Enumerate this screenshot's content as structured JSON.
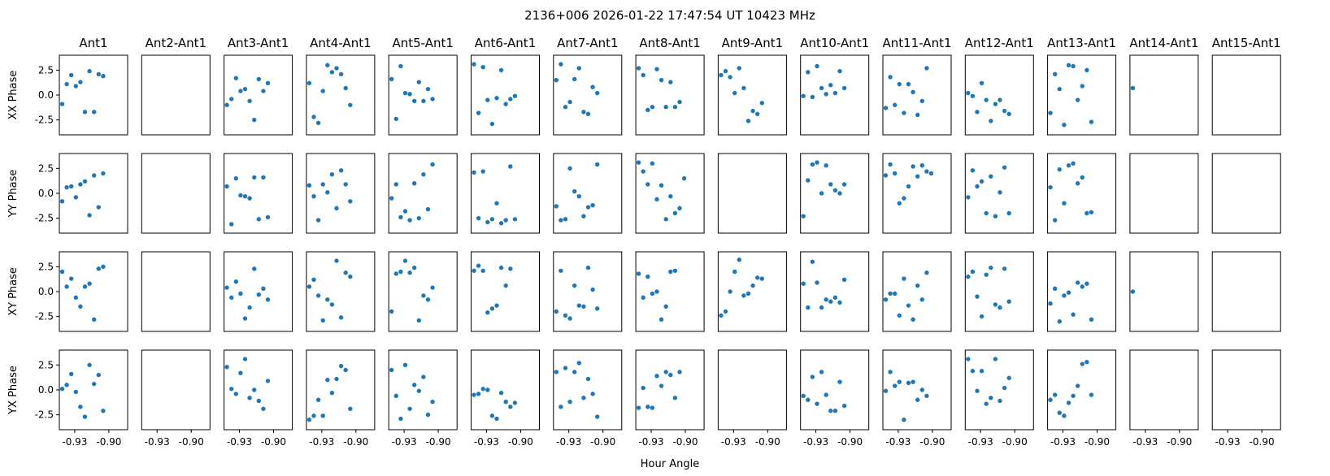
{
  "figure": {
    "suptitle": "2136+006  2026-01-22 17:47:54 UT  10423 MHz",
    "xlabel": "Hour Angle",
    "marker_color": "#1f77b4"
  },
  "chart_data": {
    "type": "scatter",
    "title": "2136+006  2026-01-22 17:47:54 UT  10423 MHz",
    "xlabel": "Hour Angle",
    "columns": [
      "Ant1",
      "Ant2-Ant1",
      "Ant3-Ant1",
      "Ant4-Ant1",
      "Ant5-Ant1",
      "Ant6-Ant1",
      "Ant7-Ant1",
      "Ant8-Ant1",
      "Ant9-Ant1",
      "Ant10-Ant1",
      "Ant11-Ant1",
      "Ant12-Ant1",
      "Ant13-Ant1",
      "Ant14-Ant1",
      "Ant15-Ant1"
    ],
    "rows": [
      "XX Phase",
      "YY Phase",
      "XY Phase",
      "YX Phase"
    ],
    "xlim": [
      -0.9435,
      -0.8835
    ],
    "ylim": [
      -4.0,
      4.0
    ],
    "x_ticks": [
      -0.93,
      -0.9
    ],
    "x_tick_labels": [
      "-0.93",
      "-0.90"
    ],
    "y_ticks": [
      2.5,
      0.0,
      -2.5
    ],
    "y_tick_labels": [
      "2.5",
      "0.0",
      "-2.5"
    ],
    "x": [
      -0.941,
      -0.937,
      -0.933,
      -0.929,
      -0.925,
      -0.921,
      -0.917,
      -0.913,
      -0.909,
      -0.905,
      -0.901,
      -0.897,
      -0.893,
      -0.889,
      -0.885
    ],
    "panels": [
      [
        [
          -0.9,
          1.1,
          2.0,
          0.9,
          1.3,
          -1.7,
          2.4,
          -1.7,
          2.1,
          1.9
        ],
        [],
        [
          -1.0,
          -0.4,
          1.7,
          0.4,
          0.6,
          -0.6,
          -2.5,
          1.6,
          0.4,
          1.2
        ],
        [
          1.2,
          -2.2,
          -2.8,
          0.4,
          3.0,
          2.3,
          2.7,
          2.1,
          0.7,
          -1.0
        ],
        [
          1.6,
          -2.4,
          2.9,
          0.2,
          0.1,
          -0.6,
          1.3,
          -0.6,
          0.6,
          -0.4
        ],
        [
          3.1,
          -1.8,
          2.8,
          -0.5,
          -2.9,
          -0.3,
          2.5,
          -0.9,
          -0.4,
          -0.1
        ],
        [
          1.5,
          3.1,
          -1.2,
          -0.7,
          1.6,
          2.7,
          -1.7,
          -1.9,
          0.8,
          0.2
        ],
        [
          2.7,
          2.0,
          -1.5,
          -1.2,
          2.6,
          1.5,
          -1.2,
          1.3,
          -1.2,
          -0.7
        ],
        [
          2.0,
          2.4,
          1.8,
          0.2,
          2.7,
          0.7,
          -2.6,
          -1.6,
          -1.9,
          -0.8
        ],
        [
          -0.1,
          2.3,
          -0.2,
          2.9,
          0.7,
          0.1,
          1.0,
          0.2,
          2.4,
          0.7
        ],
        [
          -1.3,
          1.8,
          -1.0,
          1.1,
          -1.8,
          1.1,
          0.3,
          -2.0,
          -0.6,
          2.7
        ],
        [
          0.2,
          -0.1,
          -1.7,
          1.2,
          -0.5,
          -2.6,
          -0.9,
          -0.5,
          -1.6,
          -1.9
        ],
        [
          -1.8,
          2.1,
          0.6,
          -3.0,
          3.0,
          2.9,
          -0.5,
          0.9,
          2.5,
          -2.7
        ],
        [
          0.7
        ],
        []
      ],
      [
        [
          -0.8,
          0.6,
          0.7,
          -0.4,
          0.9,
          1.2,
          -2.2,
          1.8,
          -1.4,
          2.0
        ],
        [],
        [
          0.7,
          -3.1,
          1.5,
          -0.2,
          -0.3,
          -0.5,
          1.6,
          -2.6,
          1.6,
          -2.4
        ],
        [
          0.8,
          -0.3,
          -2.7,
          0.9,
          0.1,
          1.9,
          -1.5,
          2.3,
          0.9,
          -0.8
        ],
        [
          -0.5,
          0.9,
          -2.4,
          -1.8,
          -2.7,
          1.0,
          -2.5,
          1.9,
          -1.6,
          2.9
        ],
        [
          2.1,
          -2.5,
          2.2,
          -2.9,
          -2.6,
          -1.0,
          -3.0,
          -2.7,
          2.7,
          -2.6
        ],
        [
          -1.3,
          -2.7,
          -2.6,
          2.5,
          0.2,
          -0.3,
          -2.3,
          -1.4,
          -1.2,
          2.9
        ],
        [
          3.1,
          2.2,
          0.9,
          3.0,
          -0.6,
          0.8,
          -2.6,
          -0.3,
          -2.0,
          -1.5,
          1.5
        ],
        [],
        [
          -2.3,
          1.3,
          2.9,
          3.1,
          0.0,
          2.8,
          0.9,
          0.3,
          0.0,
          0.9
        ],
        [
          1.8,
          2.9,
          2.0,
          -1.0,
          -0.5,
          0.7,
          2.7,
          1.7,
          2.8,
          2.2,
          2.0
        ],
        [
          -0.4,
          2.3,
          0.7,
          1.2,
          -2.0,
          1.7,
          -2.3,
          0.1,
          2.6,
          -2.0
        ],
        [
          0.6,
          -2.7,
          2.4,
          -1.0,
          2.8,
          3.0,
          1.0,
          1.6,
          -2.0,
          -1.9
        ],
        [],
        []
      ],
      [
        [
          2.0,
          0.5,
          1.3,
          -0.6,
          -1.5,
          0.5,
          0.8,
          -2.8,
          2.3,
          2.5
        ],
        [],
        [
          0.4,
          -0.6,
          1.0,
          -0.2,
          -2.7,
          -1.6,
          2.3,
          -0.3,
          0.3,
          -0.8
        ],
        [
          0.5,
          1.2,
          -0.4,
          -2.9,
          -0.8,
          -1.3,
          3.1,
          -2.6,
          1.9,
          1.5
        ],
        [
          -2.0,
          1.8,
          2.0,
          3.1,
          1.9,
          2.4,
          -2.9,
          -0.4,
          -0.8,
          0.4
        ],
        [
          2.1,
          2.6,
          2.1,
          -2.1,
          -1.7,
          -1.4,
          2.4,
          0.6,
          2.3
        ],
        [
          -2.0,
          2.1,
          -2.4,
          -2.7,
          0.6,
          -1.4,
          -1.5,
          2.4,
          0.2,
          -1.7
        ],
        [
          1.8,
          -0.6,
          1.5,
          -0.2,
          0.0,
          -2.8,
          -1.5,
          2.0,
          2.1
        ],
        [
          -2.4,
          -2.0,
          0.0,
          2.0,
          3.2,
          -0.4,
          -0.2,
          0.6,
          1.4,
          1.3
        ],
        [
          0.8,
          -1.6,
          3.0,
          0.9,
          -1.6,
          -0.8,
          -1.0,
          -0.6,
          -1.1,
          1.2
        ],
        [
          -0.8,
          -0.2,
          -0.2,
          -2.4,
          1.3,
          -1.4,
          -2.8,
          0.6,
          -0.8,
          1.9
        ],
        [
          1.5,
          2.0,
          -0.5,
          -2.5,
          1.7,
          2.4,
          -1.3,
          -1.6,
          2.3,
          -1.0
        ],
        [
          -1.2,
          0.3,
          -3.0,
          -0.4,
          -0.1,
          -2.3,
          0.9,
          0.5,
          0.8,
          -2.8
        ],
        [
          0.0
        ],
        []
      ],
      [
        [
          0.1,
          0.5,
          1.6,
          -0.2,
          -1.7,
          -2.7,
          2.5,
          0.6,
          1.5,
          -2.1
        ],
        [],
        [
          2.3,
          0.1,
          -0.4,
          1.7,
          3.1,
          -0.8,
          0.0,
          -1.1,
          -1.9,
          0.9
        ],
        [
          -3.0,
          -2.6,
          -1.0,
          -2.6,
          1.0,
          -0.3,
          1.1,
          2.4,
          2.0,
          -1.9
        ],
        [
          2.0,
          -0.6,
          -2.9,
          2.5,
          -1.9,
          0.5,
          -0.1,
          1.3,
          -2.5,
          -1.2
        ],
        [
          -0.5,
          -0.4,
          0.1,
          0.0,
          -2.6,
          -2.9,
          -0.3,
          -1.2,
          -1.7,
          -1.3
        ],
        [
          1.8,
          -1.7,
          2.2,
          -1.2,
          1.8,
          2.7,
          -0.8,
          1.1,
          -0.4,
          -2.7
        ],
        [
          -1.8,
          0.2,
          -1.7,
          -1.8,
          1.4,
          0.4,
          1.8,
          1.5,
          -0.8,
          1.8
        ],
        [],
        [
          -0.6,
          -1.0,
          1.3,
          -1.4,
          1.8,
          -0.5,
          -2.1,
          -2.1,
          0.8,
          -1.6
        ],
        [
          -0.1,
          1.8,
          0.4,
          0.8,
          -3.0,
          0.7,
          0.8,
          -1.0,
          0.0,
          -0.6
        ],
        [
          3.1,
          1.9,
          -0.1,
          1.9,
          -1.4,
          -0.8,
          3.1,
          -1.1,
          0.2,
          1.2
        ],
        [
          -1.0,
          -0.5,
          -2.3,
          -2.6,
          -1.3,
          -0.6,
          0.4,
          2.6,
          2.8,
          -0.5
        ],
        [],
        []
      ]
    ]
  }
}
